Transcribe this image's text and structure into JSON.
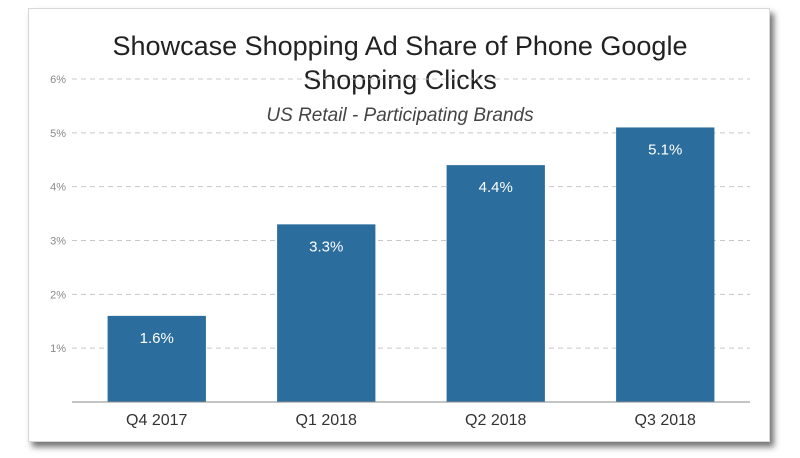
{
  "chart_data": {
    "type": "bar",
    "title_lines": [
      "Showcase Shopping Ad Share of Phone Google",
      "Shopping Clicks"
    ],
    "subtitle": "US Retail - Participating Brands",
    "categories": [
      "Q4 2017",
      "Q1 2018",
      "Q2 2018",
      "Q3 2018"
    ],
    "values": [
      1.6,
      3.3,
      4.4,
      5.1
    ],
    "data_labels": [
      "1.6%",
      "3.3%",
      "4.4%",
      "5.1%"
    ],
    "y_ticks": [
      1,
      2,
      3,
      4,
      5,
      6
    ],
    "y_tick_labels": [
      "1%",
      "2%",
      "3%",
      "4%",
      "5%",
      "6%"
    ],
    "ylim": [
      0,
      6
    ],
    "grid": true,
    "legend": "none",
    "colors": {
      "bar": "#2b6e9e",
      "grid": "#c8c8c8",
      "axis": "#888888"
    }
  }
}
